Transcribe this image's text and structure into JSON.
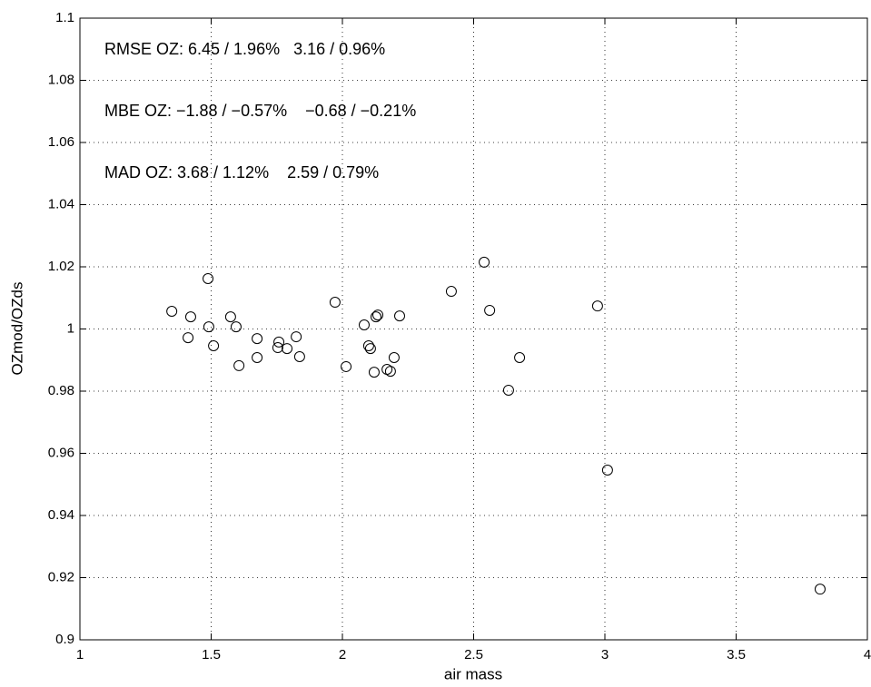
{
  "chart_data": {
    "type": "scatter",
    "x_label": "air mass",
    "y_label": "OZmod/OZds",
    "annotations": [
      "RMSE OZ: 6.45 / 1.96%   3.16 / 0.96%",
      "MBE OZ: −1.88 / −0.57%    −0.68 / −0.21%",
      "MAD OZ: 3.68 / 1.12%    2.59 / 0.79%"
    ],
    "x": [
      1.35,
      1.488,
      1.422,
      1.412,
      1.491,
      1.509,
      1.574,
      1.595,
      1.606,
      1.675,
      1.675,
      1.758,
      1.754,
      1.789,
      1.824,
      1.837,
      1.972,
      2.014,
      2.083,
      2.1,
      2.107,
      2.128,
      2.135,
      2.121,
      2.17,
      2.183,
      2.197,
      2.218,
      2.415,
      2.54,
      2.561,
      2.633,
      2.675,
      2.972,
      3.01,
      3.82
    ],
    "values": [
      1.0057,
      1.0162,
      1.0039,
      0.9972,
      1.0007,
      0.9946,
      1.0039,
      1.0007,
      0.9882,
      0.9969,
      0.9908,
      0.9958,
      0.994,
      0.9937,
      0.9975,
      0.9911,
      1.0086,
      0.9879,
      1.0013,
      0.9946,
      0.9937,
      1.0039,
      1.0045,
      0.9861,
      0.987,
      0.9864,
      0.9908,
      1.0042,
      1.0121,
      1.0215,
      1.006,
      0.9803,
      0.9908,
      1.0074,
      0.9546,
      0.9163
    ],
    "color": "#000000",
    "xlim": [
      1,
      4
    ],
    "xticks": [
      1,
      1.5,
      2,
      2.5,
      3,
      3.5,
      4
    ],
    "ylim": [
      0.9,
      1.1
    ],
    "yticks": [
      0.9,
      0.92,
      0.94,
      0.96,
      0.98,
      1,
      1.02,
      1.04,
      1.06,
      1.08,
      1.1
    ],
    "grid": true
  }
}
